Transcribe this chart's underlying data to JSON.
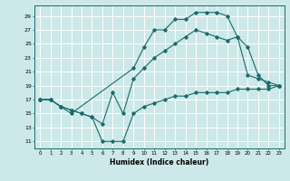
{
  "title": "",
  "xlabel": "Humidex (Indice chaleur)",
  "ylabel": "",
  "bg_color": "#cce8e8",
  "line_color": "#1a6b6b",
  "grid_color": "#ffffff",
  "xlim": [
    -0.5,
    23.5
  ],
  "ylim": [
    10.0,
    30.5
  ],
  "yticks": [
    11,
    13,
    15,
    17,
    19,
    21,
    23,
    25,
    27,
    29
  ],
  "xticks": [
    0,
    1,
    2,
    3,
    4,
    5,
    6,
    7,
    8,
    9,
    10,
    11,
    12,
    13,
    14,
    15,
    16,
    17,
    18,
    19,
    20,
    21,
    22,
    23
  ],
  "curve1": {
    "x": [
      0,
      1,
      2,
      3,
      9,
      10,
      11,
      12,
      13,
      14,
      15,
      16,
      17,
      18,
      19,
      20,
      21,
      22,
      23
    ],
    "y": [
      17,
      17,
      16,
      15,
      21.5,
      24.5,
      27,
      27,
      28.5,
      28.5,
      29.5,
      29.5,
      29.5,
      29,
      26,
      20.5,
      20,
      19.5,
      19
    ]
  },
  "curve2": {
    "x": [
      0,
      1,
      2,
      3,
      4,
      5,
      6,
      7,
      8,
      9,
      10,
      11,
      12,
      13,
      14,
      15,
      16,
      17,
      18,
      19,
      20,
      21,
      22,
      23
    ],
    "y": [
      17,
      17,
      16,
      15.5,
      15,
      14.5,
      13.5,
      18,
      15,
      20,
      21.5,
      23,
      24,
      25,
      26,
      27,
      26.5,
      26,
      25.5,
      26,
      24.5,
      20.5,
      19,
      19
    ]
  },
  "curve3": {
    "x": [
      0,
      1,
      2,
      3,
      4,
      5,
      6,
      7,
      8,
      9,
      10,
      11,
      12,
      13,
      14,
      15,
      16,
      17,
      18,
      19,
      20,
      21,
      22,
      23
    ],
    "y": [
      17,
      17,
      16,
      15.5,
      15,
      14.5,
      11,
      11,
      11,
      15,
      16,
      16.5,
      17,
      17.5,
      17.5,
      18,
      18,
      18,
      18,
      18.5,
      18.5,
      18.5,
      18.5,
      19
    ]
  }
}
